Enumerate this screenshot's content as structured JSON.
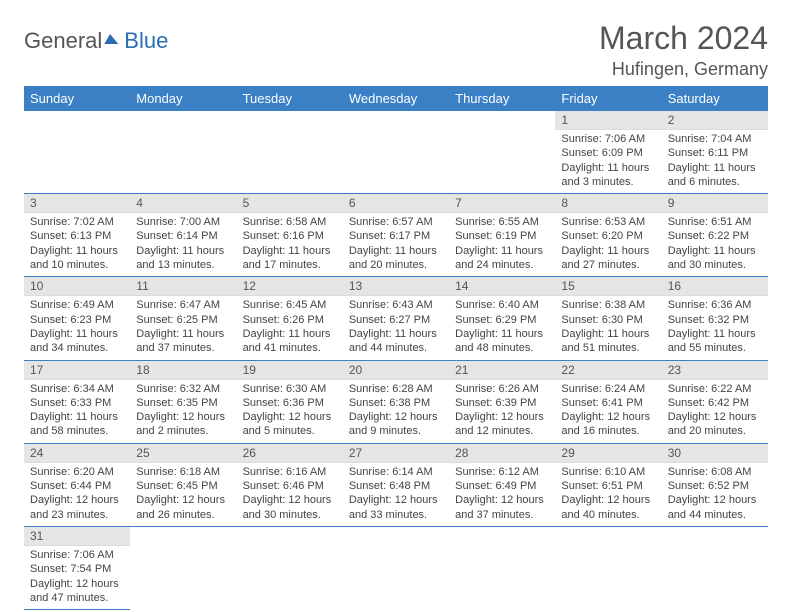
{
  "logo": {
    "part1": "General",
    "part2": "Blue"
  },
  "title": "March 2024",
  "location": "Hufingen, Germany",
  "colors": {
    "header_bg": "#3b7fc4",
    "header_text": "#ffffff",
    "daynum_bg": "#e5e5e5",
    "row_border": "#3b7fc4",
    "body_text": "#444444",
    "title_text": "#555555"
  },
  "weekdays": [
    "Sunday",
    "Monday",
    "Tuesday",
    "Wednesday",
    "Thursday",
    "Friday",
    "Saturday"
  ],
  "weeks": [
    [
      null,
      null,
      null,
      null,
      null,
      {
        "n": "1",
        "sunrise": "7:06 AM",
        "sunset": "6:09 PM",
        "daylight": "11 hours and 3 minutes."
      },
      {
        "n": "2",
        "sunrise": "7:04 AM",
        "sunset": "6:11 PM",
        "daylight": "11 hours and 6 minutes."
      }
    ],
    [
      {
        "n": "3",
        "sunrise": "7:02 AM",
        "sunset": "6:13 PM",
        "daylight": "11 hours and 10 minutes."
      },
      {
        "n": "4",
        "sunrise": "7:00 AM",
        "sunset": "6:14 PM",
        "daylight": "11 hours and 13 minutes."
      },
      {
        "n": "5",
        "sunrise": "6:58 AM",
        "sunset": "6:16 PM",
        "daylight": "11 hours and 17 minutes."
      },
      {
        "n": "6",
        "sunrise": "6:57 AM",
        "sunset": "6:17 PM",
        "daylight": "11 hours and 20 minutes."
      },
      {
        "n": "7",
        "sunrise": "6:55 AM",
        "sunset": "6:19 PM",
        "daylight": "11 hours and 24 minutes."
      },
      {
        "n": "8",
        "sunrise": "6:53 AM",
        "sunset": "6:20 PM",
        "daylight": "11 hours and 27 minutes."
      },
      {
        "n": "9",
        "sunrise": "6:51 AM",
        "sunset": "6:22 PM",
        "daylight": "11 hours and 30 minutes."
      }
    ],
    [
      {
        "n": "10",
        "sunrise": "6:49 AM",
        "sunset": "6:23 PM",
        "daylight": "11 hours and 34 minutes."
      },
      {
        "n": "11",
        "sunrise": "6:47 AM",
        "sunset": "6:25 PM",
        "daylight": "11 hours and 37 minutes."
      },
      {
        "n": "12",
        "sunrise": "6:45 AM",
        "sunset": "6:26 PM",
        "daylight": "11 hours and 41 minutes."
      },
      {
        "n": "13",
        "sunrise": "6:43 AM",
        "sunset": "6:27 PM",
        "daylight": "11 hours and 44 minutes."
      },
      {
        "n": "14",
        "sunrise": "6:40 AM",
        "sunset": "6:29 PM",
        "daylight": "11 hours and 48 minutes."
      },
      {
        "n": "15",
        "sunrise": "6:38 AM",
        "sunset": "6:30 PM",
        "daylight": "11 hours and 51 minutes."
      },
      {
        "n": "16",
        "sunrise": "6:36 AM",
        "sunset": "6:32 PM",
        "daylight": "11 hours and 55 minutes."
      }
    ],
    [
      {
        "n": "17",
        "sunrise": "6:34 AM",
        "sunset": "6:33 PM",
        "daylight": "11 hours and 58 minutes."
      },
      {
        "n": "18",
        "sunrise": "6:32 AM",
        "sunset": "6:35 PM",
        "daylight": "12 hours and 2 minutes."
      },
      {
        "n": "19",
        "sunrise": "6:30 AM",
        "sunset": "6:36 PM",
        "daylight": "12 hours and 5 minutes."
      },
      {
        "n": "20",
        "sunrise": "6:28 AM",
        "sunset": "6:38 PM",
        "daylight": "12 hours and 9 minutes."
      },
      {
        "n": "21",
        "sunrise": "6:26 AM",
        "sunset": "6:39 PM",
        "daylight": "12 hours and 12 minutes."
      },
      {
        "n": "22",
        "sunrise": "6:24 AM",
        "sunset": "6:41 PM",
        "daylight": "12 hours and 16 minutes."
      },
      {
        "n": "23",
        "sunrise": "6:22 AM",
        "sunset": "6:42 PM",
        "daylight": "12 hours and 20 minutes."
      }
    ],
    [
      {
        "n": "24",
        "sunrise": "6:20 AM",
        "sunset": "6:44 PM",
        "daylight": "12 hours and 23 minutes."
      },
      {
        "n": "25",
        "sunrise": "6:18 AM",
        "sunset": "6:45 PM",
        "daylight": "12 hours and 26 minutes."
      },
      {
        "n": "26",
        "sunrise": "6:16 AM",
        "sunset": "6:46 PM",
        "daylight": "12 hours and 30 minutes."
      },
      {
        "n": "27",
        "sunrise": "6:14 AM",
        "sunset": "6:48 PM",
        "daylight": "12 hours and 33 minutes."
      },
      {
        "n": "28",
        "sunrise": "6:12 AM",
        "sunset": "6:49 PM",
        "daylight": "12 hours and 37 minutes."
      },
      {
        "n": "29",
        "sunrise": "6:10 AM",
        "sunset": "6:51 PM",
        "daylight": "12 hours and 40 minutes."
      },
      {
        "n": "30",
        "sunrise": "6:08 AM",
        "sunset": "6:52 PM",
        "daylight": "12 hours and 44 minutes."
      }
    ],
    [
      {
        "n": "31",
        "sunrise": "7:06 AM",
        "sunset": "7:54 PM",
        "daylight": "12 hours and 47 minutes."
      },
      null,
      null,
      null,
      null,
      null,
      null
    ]
  ],
  "labels": {
    "sunrise": "Sunrise: ",
    "sunset": "Sunset: ",
    "daylight": "Daylight: "
  }
}
